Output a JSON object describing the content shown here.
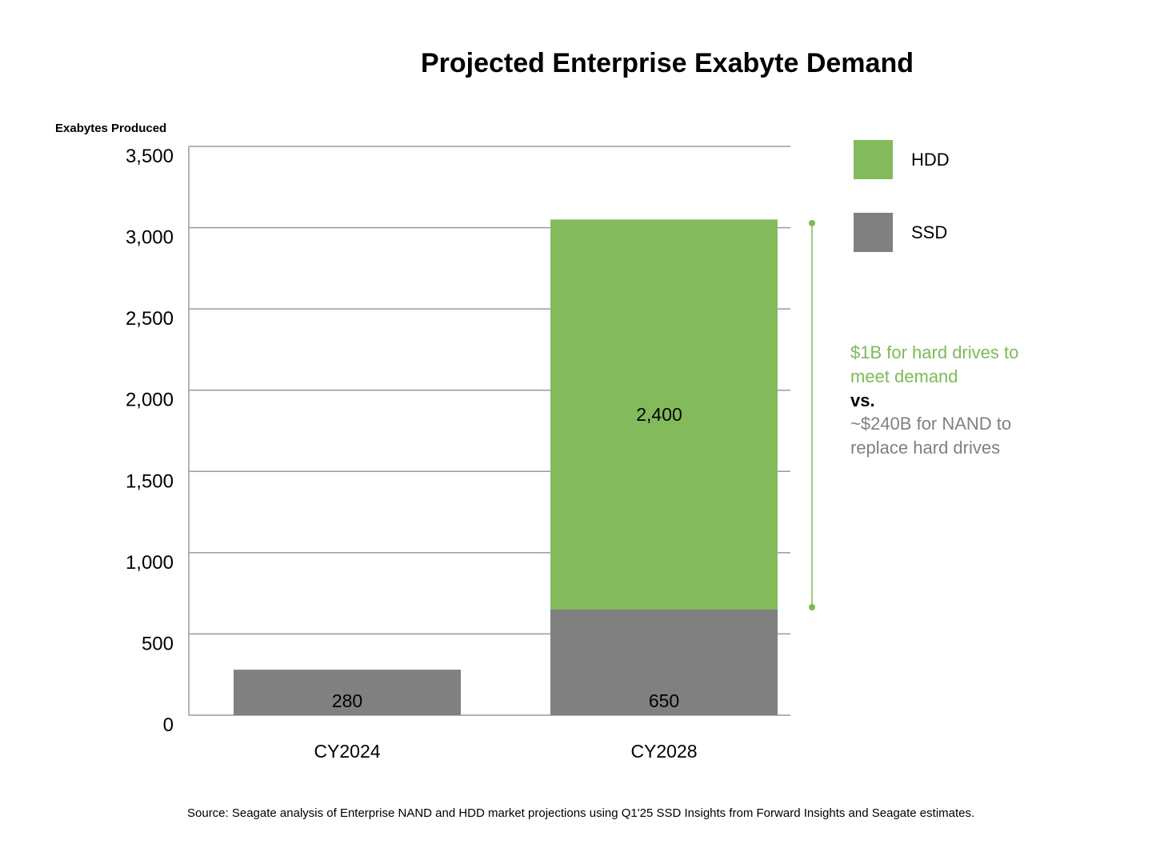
{
  "colors": {
    "hdd": "#83bb5c",
    "ssd": "#808080",
    "grid": "#9a9a9a",
    "accent": "#7dba57",
    "muted": "#808080"
  },
  "chart_data": {
    "type": "bar",
    "stacked": true,
    "title": "Projected Enterprise Exabyte Demand",
    "ylabel": "Exabytes Produced",
    "xlabel": "",
    "ylim": [
      0,
      3500
    ],
    "yticks": [
      0,
      500,
      1000,
      1500,
      2000,
      2500,
      3000,
      3500
    ],
    "ytick_labels": [
      "0",
      "500",
      "1,000",
      "1,500",
      "2,000",
      "2,500",
      "3,000",
      "3,500"
    ],
    "categories": [
      "CY2024",
      "CY2028"
    ],
    "series": [
      {
        "name": "SSD",
        "values": [
          280,
          650
        ],
        "labels": [
          "280",
          "650"
        ]
      },
      {
        "name": "HDD",
        "values": [
          0,
          2400
        ],
        "labels": [
          "",
          "2,400"
        ]
      }
    ],
    "legend": [
      "HDD",
      "SSD"
    ],
    "legend_position": "top-right",
    "grid": true,
    "annotation": {
      "line1": "$1B for hard drives to",
      "line2": "meet demand",
      "vs": "vs.",
      "line3": "~$240B for NAND to",
      "line4": "replace hard drives"
    },
    "source": "Source: Seagate analysis of Enterprise NAND and HDD market projections using Q1'25 SSD Insights from Forward Insights and Seagate estimates."
  }
}
